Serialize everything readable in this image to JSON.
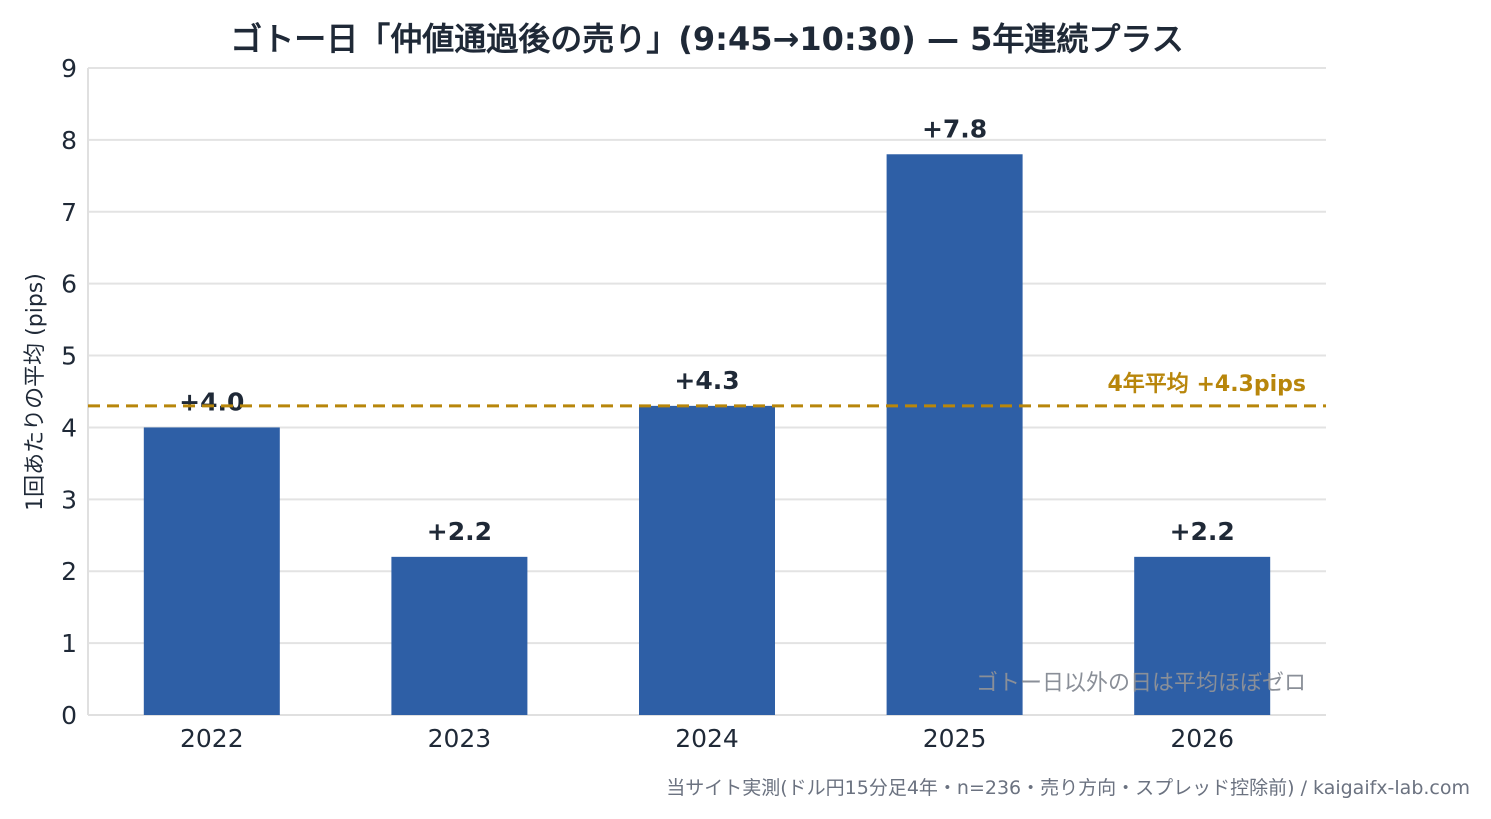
{
  "chart_data": {
    "type": "bar",
    "title": "ゴトー日「仲値通過後の売り」(9:45→10:30) — 5年連続プラス",
    "ylabel": "1回あたりの平均 (pips)",
    "xlabel": "",
    "categories": [
      "2022",
      "2023",
      "2024",
      "2025",
      "2026"
    ],
    "values": [
      4.0,
      2.2,
      4.3,
      7.8,
      2.2
    ],
    "data_labels": [
      "+4.0",
      "+2.2",
      "+4.3",
      "+7.8",
      "+2.2"
    ],
    "ylim": [
      0,
      9
    ],
    "yticks": [
      0,
      1,
      2,
      3,
      4,
      5,
      6,
      7,
      8,
      9
    ],
    "grid": true,
    "reference_line": {
      "value": 4.3,
      "label": "4年平均 +4.3pips",
      "style": "dashed"
    },
    "annotation": "ゴトー日以外の日は平均ほぼゼロ",
    "colors": {
      "bar": "#2e5fa6",
      "reference_line": "#b8860b",
      "grid": "#e3e3e3",
      "annotation": "#8a8f98"
    }
  },
  "footer": "当サイト実測(ドル円15分足4年・n=236・売り方向・スプレッド控除前) / kaigaifx-lab.com"
}
